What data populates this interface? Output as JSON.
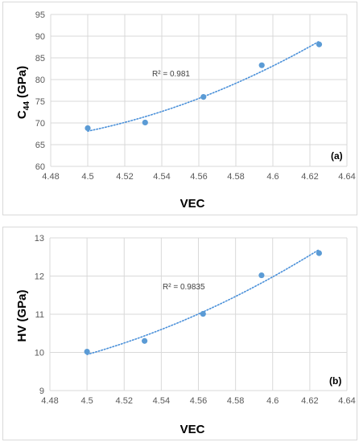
{
  "chart_data": [
    {
      "type": "scatter",
      "panel_label": "(a)",
      "xlabel": "VEC",
      "ylabel": {
        "main": "C",
        "sub": "44",
        "rest": " (GPa)"
      },
      "xlim": [
        4.48,
        4.64
      ],
      "ylim": [
        60,
        95
      ],
      "x_ticks": [
        "4.48",
        "4.5",
        "4.52",
        "4.54",
        "4.56",
        "4.58",
        "4.6",
        "4.62",
        "4.64"
      ],
      "y_ticks": [
        "60",
        "65",
        "70",
        "75",
        "80",
        "85",
        "90",
        "95"
      ],
      "x_tick_values": [
        4.48,
        4.5,
        4.52,
        4.54,
        4.56,
        4.58,
        4.6,
        4.62,
        4.64
      ],
      "y_tick_values": [
        60,
        65,
        70,
        75,
        80,
        85,
        90,
        95
      ],
      "grid": true,
      "points": {
        "x": [
          4.5,
          4.531,
          4.5625,
          4.594,
          4.625
        ],
        "y": [
          68.8,
          70.1,
          76.0,
          83.3,
          88.1
        ]
      },
      "trendline": {
        "style": "dotted",
        "kind": "polynomial",
        "label": "R² = 0.981",
        "r2": 0.981
      },
      "marker_color": "#5b9bd5"
    },
    {
      "type": "scatter",
      "panel_label": "(b)",
      "xlabel": "VEC",
      "ylabel": {
        "main": "HV (GPa)",
        "sub": "",
        "rest": ""
      },
      "xlim": [
        4.48,
        4.64
      ],
      "ylim": [
        9,
        13
      ],
      "x_ticks": [
        "4.48",
        "4.5",
        "4.52",
        "4.54",
        "4.56",
        "4.58",
        "4.6",
        "4.62",
        "4.64"
      ],
      "y_ticks": [
        "9",
        "10",
        "11",
        "12",
        "13"
      ],
      "x_tick_values": [
        4.48,
        4.5,
        4.52,
        4.54,
        4.56,
        4.58,
        4.6,
        4.62,
        4.64
      ],
      "y_tick_values": [
        9,
        10,
        11,
        12,
        13
      ],
      "grid": true,
      "points": {
        "x": [
          4.5,
          4.531,
          4.5625,
          4.594,
          4.625
        ],
        "y": [
          10.02,
          10.3,
          11.01,
          12.02,
          12.6
        ]
      },
      "trendline": {
        "style": "dotted",
        "kind": "polynomial",
        "label": "R² = 0.9835",
        "r2": 0.9835
      },
      "marker_color": "#5b9bd5"
    }
  ]
}
